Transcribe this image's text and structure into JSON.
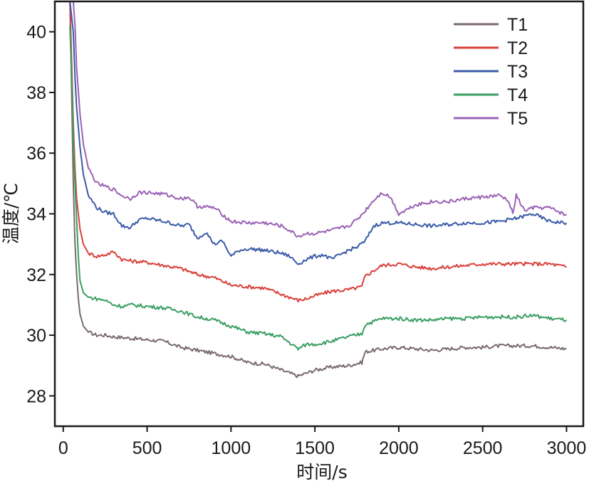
{
  "chart_data": {
    "type": "line",
    "title": "",
    "xlabel": "时间/s",
    "ylabel": "温度/℃",
    "xlim": [
      -50,
      3100
    ],
    "ylim": [
      27,
      41
    ],
    "x_ticks": [
      0,
      500,
      1000,
      1500,
      2000,
      2500,
      3000
    ],
    "y_ticks": [
      28,
      30,
      32,
      34,
      36,
      38,
      40
    ],
    "grid": false,
    "legend_position": "top-right",
    "series": [
      {
        "name": "T1",
        "color": "#7a6a6a",
        "points": [
          [
            40,
            41
          ],
          [
            50,
            38
          ],
          [
            60,
            35
          ],
          [
            70,
            33
          ],
          [
            80,
            32
          ],
          [
            90,
            31.2
          ],
          [
            100,
            30.7
          ],
          [
            120,
            30.3
          ],
          [
            150,
            30.1
          ],
          [
            200,
            30.0
          ],
          [
            250,
            30.0
          ],
          [
            300,
            29.95
          ],
          [
            400,
            29.9
          ],
          [
            500,
            29.85
          ],
          [
            600,
            29.8
          ],
          [
            700,
            29.6
          ],
          [
            800,
            29.5
          ],
          [
            900,
            29.4
          ],
          [
            1000,
            29.3
          ],
          [
            1100,
            29.1
          ],
          [
            1200,
            29.05
          ],
          [
            1300,
            28.85
          ],
          [
            1400,
            28.65
          ],
          [
            1450,
            28.75
          ],
          [
            1500,
            28.85
          ],
          [
            1600,
            28.95
          ],
          [
            1700,
            29.0
          ],
          [
            1780,
            29.1
          ],
          [
            1800,
            29.45
          ],
          [
            1900,
            29.55
          ],
          [
            2000,
            29.6
          ],
          [
            2100,
            29.55
          ],
          [
            2200,
            29.5
          ],
          [
            2300,
            29.55
          ],
          [
            2400,
            29.6
          ],
          [
            2500,
            29.6
          ],
          [
            2600,
            29.65
          ],
          [
            2700,
            29.65
          ],
          [
            2800,
            29.65
          ],
          [
            2900,
            29.6
          ],
          [
            3000,
            29.55
          ]
        ]
      },
      {
        "name": "T2",
        "color": "#d9413b",
        "points": [
          [
            40,
            41
          ],
          [
            50,
            39
          ],
          [
            60,
            37
          ],
          [
            70,
            35.5
          ],
          [
            80,
            34.5
          ],
          [
            100,
            33.5
          ],
          [
            120,
            33.0
          ],
          [
            150,
            32.7
          ],
          [
            200,
            32.6
          ],
          [
            250,
            32.65
          ],
          [
            300,
            32.75
          ],
          [
            350,
            32.5
          ],
          [
            400,
            32.45
          ],
          [
            500,
            32.4
          ],
          [
            600,
            32.3
          ],
          [
            700,
            32.2
          ],
          [
            800,
            32.0
          ],
          [
            900,
            31.9
          ],
          [
            1000,
            31.65
          ],
          [
            1100,
            31.6
          ],
          [
            1200,
            31.55
          ],
          [
            1300,
            31.35
          ],
          [
            1400,
            31.15
          ],
          [
            1450,
            31.2
          ],
          [
            1500,
            31.3
          ],
          [
            1600,
            31.45
          ],
          [
            1700,
            31.5
          ],
          [
            1780,
            31.6
          ],
          [
            1800,
            31.95
          ],
          [
            1900,
            32.3
          ],
          [
            2000,
            32.35
          ],
          [
            2100,
            32.25
          ],
          [
            2200,
            32.2
          ],
          [
            2300,
            32.25
          ],
          [
            2400,
            32.3
          ],
          [
            2500,
            32.35
          ],
          [
            2600,
            32.35
          ],
          [
            2700,
            32.35
          ],
          [
            2800,
            32.35
          ],
          [
            2900,
            32.35
          ],
          [
            3000,
            32.25
          ]
        ]
      },
      {
        "name": "T3",
        "color": "#3a5ba8",
        "points": [
          [
            40,
            41
          ],
          [
            60,
            40
          ],
          [
            70,
            38.5
          ],
          [
            80,
            37.5
          ],
          [
            100,
            36.2
          ],
          [
            120,
            35.3
          ],
          [
            150,
            34.6
          ],
          [
            200,
            34.2
          ],
          [
            250,
            34.05
          ],
          [
            300,
            34.0
          ],
          [
            350,
            33.6
          ],
          [
            400,
            33.55
          ],
          [
            450,
            33.8
          ],
          [
            500,
            33.85
          ],
          [
            600,
            33.75
          ],
          [
            700,
            33.6
          ],
          [
            750,
            33.65
          ],
          [
            800,
            33.2
          ],
          [
            850,
            33.4
          ],
          [
            900,
            33.0
          ],
          [
            950,
            33.1
          ],
          [
            1000,
            32.6
          ],
          [
            1050,
            32.8
          ],
          [
            1100,
            32.85
          ],
          [
            1200,
            32.8
          ],
          [
            1300,
            32.7
          ],
          [
            1350,
            32.6
          ],
          [
            1400,
            32.35
          ],
          [
            1450,
            32.5
          ],
          [
            1500,
            32.6
          ],
          [
            1550,
            32.65
          ],
          [
            1600,
            32.5
          ],
          [
            1700,
            32.8
          ],
          [
            1750,
            32.9
          ],
          [
            1800,
            33.1
          ],
          [
            1850,
            33.6
          ],
          [
            1900,
            33.7
          ],
          [
            2000,
            33.7
          ],
          [
            2100,
            33.65
          ],
          [
            2200,
            33.6
          ],
          [
            2300,
            33.65
          ],
          [
            2400,
            33.7
          ],
          [
            2500,
            33.7
          ],
          [
            2600,
            33.75
          ],
          [
            2700,
            33.85
          ],
          [
            2800,
            34.0
          ],
          [
            2900,
            33.75
          ],
          [
            3000,
            33.7
          ]
        ]
      },
      {
        "name": "T4",
        "color": "#3a9e62",
        "points": [
          [
            40,
            40.2
          ],
          [
            50,
            38.5
          ],
          [
            60,
            36.5
          ],
          [
            70,
            35
          ],
          [
            80,
            33.8
          ],
          [
            90,
            32.6
          ],
          [
            100,
            31.8
          ],
          [
            120,
            31.4
          ],
          [
            150,
            31.25
          ],
          [
            200,
            31.2
          ],
          [
            250,
            31.15
          ],
          [
            300,
            31.0
          ],
          [
            350,
            30.95
          ],
          [
            400,
            31.0
          ],
          [
            500,
            30.95
          ],
          [
            600,
            30.9
          ],
          [
            700,
            30.8
          ],
          [
            800,
            30.6
          ],
          [
            900,
            30.5
          ],
          [
            1000,
            30.3
          ],
          [
            1100,
            30.1
          ],
          [
            1200,
            30.05
          ],
          [
            1300,
            29.95
          ],
          [
            1400,
            29.55
          ],
          [
            1450,
            29.7
          ],
          [
            1500,
            29.7
          ],
          [
            1600,
            29.8
          ],
          [
            1700,
            29.95
          ],
          [
            1780,
            30.05
          ],
          [
            1800,
            30.35
          ],
          [
            1900,
            30.55
          ],
          [
            2000,
            30.55
          ],
          [
            2100,
            30.5
          ],
          [
            2200,
            30.5
          ],
          [
            2300,
            30.55
          ],
          [
            2400,
            30.55
          ],
          [
            2500,
            30.6
          ],
          [
            2600,
            30.6
          ],
          [
            2700,
            30.6
          ],
          [
            2800,
            30.65
          ],
          [
            2900,
            30.55
          ],
          [
            3000,
            30.5
          ]
        ]
      },
      {
        "name": "T5",
        "color": "#9a62b5",
        "points": [
          [
            60,
            41
          ],
          [
            70,
            40.2
          ],
          [
            80,
            38.8
          ],
          [
            100,
            37.3
          ],
          [
            120,
            36.3
          ],
          [
            150,
            35.5
          ],
          [
            200,
            35.0
          ],
          [
            250,
            34.9
          ],
          [
            300,
            34.8
          ],
          [
            350,
            34.6
          ],
          [
            400,
            34.5
          ],
          [
            450,
            34.7
          ],
          [
            500,
            34.7
          ],
          [
            600,
            34.65
          ],
          [
            700,
            34.5
          ],
          [
            750,
            34.55
          ],
          [
            800,
            34.25
          ],
          [
            900,
            34.2
          ],
          [
            1000,
            33.75
          ],
          [
            1100,
            33.7
          ],
          [
            1200,
            33.7
          ],
          [
            1300,
            33.6
          ],
          [
            1350,
            33.45
          ],
          [
            1400,
            33.25
          ],
          [
            1450,
            33.35
          ],
          [
            1500,
            33.35
          ],
          [
            1600,
            33.45
          ],
          [
            1700,
            33.6
          ],
          [
            1750,
            33.8
          ],
          [
            1800,
            34.1
          ],
          [
            1850,
            34.45
          ],
          [
            1900,
            34.7
          ],
          [
            1950,
            34.55
          ],
          [
            2000,
            34.0
          ],
          [
            2100,
            34.3
          ],
          [
            2200,
            34.4
          ],
          [
            2300,
            34.4
          ],
          [
            2400,
            34.5
          ],
          [
            2500,
            34.55
          ],
          [
            2600,
            34.6
          ],
          [
            2650,
            34.45
          ],
          [
            2680,
            34.0
          ],
          [
            2700,
            34.6
          ],
          [
            2750,
            34.1
          ],
          [
            2800,
            34.2
          ],
          [
            2900,
            34.2
          ],
          [
            3000,
            33.95
          ]
        ]
      }
    ]
  }
}
